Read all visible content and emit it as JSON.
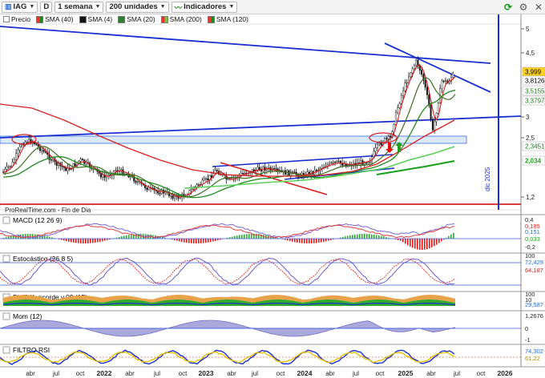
{
  "toolbar": {
    "symbol": "IAG",
    "mode_badge": "D",
    "period": "1 semana",
    "units": "200 unidades",
    "indicators_label": "Indicadores"
  },
  "legend": {
    "price_label": "Precio",
    "items": [
      {
        "label": "SMA (40)",
        "color": "#1e8a1e"
      },
      {
        "label": "SMA (4)",
        "color": "#111111"
      },
      {
        "label": "SMA (20)",
        "color": "#2e7d32"
      },
      {
        "label": "SMA (200)",
        "color": "#7ac143"
      },
      {
        "label": "SMA (120)",
        "color": "#d62020"
      }
    ]
  },
  "main_chart": {
    "source_text": "ProRealTime.com - Fin de Dia",
    "vertical_marker_label": "dic 2025",
    "y_axis": [
      {
        "label": "5",
        "y": 5
      },
      {
        "label": "4,5",
        "y": 4.5
      },
      {
        "label": "3",
        "y": 3
      },
      {
        "label": "2,5",
        "y": 2.5
      },
      {
        "label": "1,2",
        "y": 1.2
      }
    ],
    "price_tags": [
      {
        "label": "3,999",
        "bg": "#ffd21f",
        "color": "#000"
      },
      {
        "label": "3,8126",
        "bg": "#ffffff",
        "color": "#000"
      },
      {
        "label": "3,5155",
        "bg": "#ffffff",
        "color": "#1e7a1e"
      },
      {
        "label": "3,3797",
        "bg": "#ffffff",
        "color": "#1e7a1e"
      },
      {
        "label": "2,3451",
        "bg": "#ffffff",
        "color": "#1e7a1e"
      },
      {
        "label": "2,034",
        "bg": "#ffffff",
        "color": "#17a017"
      }
    ]
  },
  "panels": [
    {
      "title": "MACD (12 26 9)",
      "ticks": [
        "0,4",
        "0,185",
        "0,151",
        "0,033",
        "-0,2"
      ]
    },
    {
      "title": "Estocástico (26 8 5)",
      "ticks": [
        "100",
        "72,429",
        "64,187"
      ]
    },
    {
      "title": "Blai5 Koncorde v.09 (15)",
      "ticks": [
        "100",
        "10",
        "29,587"
      ]
    },
    {
      "title": "Mom (12)",
      "ticks": [
        "1,2676",
        "0",
        "-1"
      ]
    },
    {
      "title": "FILTRO RSI",
      "ticks": [
        "74,302",
        "61,22"
      ]
    }
  ],
  "x_axis": [
    {
      "label": "abr",
      "bold": false
    },
    {
      "label": "jul",
      "bold": false
    },
    {
      "label": "oct",
      "bold": false
    },
    {
      "label": "2022",
      "bold": true
    },
    {
      "label": "abr",
      "bold": false
    },
    {
      "label": "jul",
      "bold": false
    },
    {
      "label": "oct",
      "bold": false
    },
    {
      "label": "2023",
      "bold": true
    },
    {
      "label": "abr",
      "bold": false
    },
    {
      "label": "jul",
      "bold": false
    },
    {
      "label": "oct",
      "bold": false
    },
    {
      "label": "2024",
      "bold": true
    },
    {
      "label": "abr",
      "bold": false
    },
    {
      "label": "jul",
      "bold": false
    },
    {
      "label": "oct",
      "bold": false
    },
    {
      "label": "2025",
      "bold": true
    },
    {
      "label": "abr",
      "bold": false
    },
    {
      "label": "jul",
      "bold": false
    },
    {
      "label": "oct",
      "bold": false
    },
    {
      "label": "2026",
      "bold": true
    }
  ]
}
